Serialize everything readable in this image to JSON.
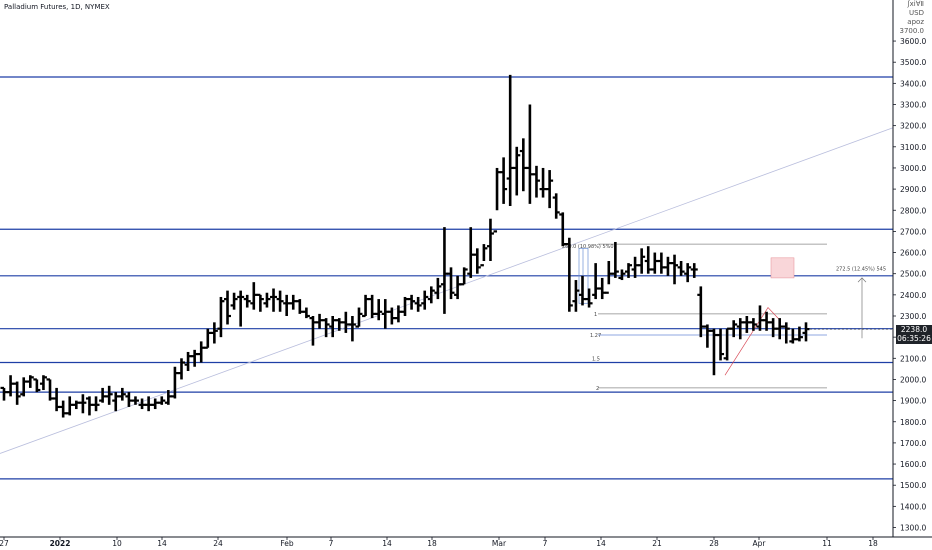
{
  "header": {
    "title": "Palladium Futures, 1D, NYMEX",
    "corner_lines": [
      "ʃxi∀Ⅱ",
      "USD",
      "apoz"
    ],
    "corner_num": "3700.0"
  },
  "price_tag": {
    "price": "2238.0",
    "countdown": "06:35:26"
  },
  "annotations": {
    "measure_upper": "260.0 (10.98%) 5%0",
    "measure_right": "272.5 (12.45%) 545",
    "fib_1": "1",
    "fib_127": "1.27",
    "fib_2": "2",
    "fib_15": "1.5"
  },
  "colors": {
    "levels": "#1e3fa6",
    "bars": "#000000",
    "trend": "#b9bedd",
    "red_zone": "#f9d6d9"
  },
  "chart_data": {
    "type": "ohlc",
    "title": "Palladium Futures, 1D, NYMEX",
    "xlabel": "",
    "ylabel": "",
    "ylim": [
      1300,
      3750
    ],
    "y_ticks": [
      1300,
      1400,
      1500,
      1600,
      1700,
      1800,
      1900,
      2000,
      2100,
      2200,
      2300,
      2400,
      2500,
      2600,
      2700,
      2800,
      2900,
      3000,
      3100,
      3200,
      3300,
      3400,
      3500,
      3600
    ],
    "x_tick_labels": [
      "27",
      "2022",
      "10",
      "14",
      "24",
      "Feb",
      "7",
      "14",
      "18",
      "Mar",
      "7",
      "14",
      "21",
      "28",
      "Apr",
      "11",
      "18"
    ],
    "horizontal_levels": [
      3430,
      2710,
      2490,
      2240,
      2080,
      1940,
      1530
    ],
    "trendline": {
      "from": [
        "27",
        1650
      ],
      "to": [
        "18",
        3190
      ]
    },
    "last_price": 2238.0,
    "bars": [
      [
        1960,
        1960,
        1900,
        1940
      ],
      [
        1940,
        2020,
        1920,
        1980
      ],
      [
        1980,
        1990,
        1880,
        1920
      ],
      [
        1930,
        2010,
        1920,
        1990
      ],
      [
        1990,
        2020,
        1960,
        2010
      ],
      [
        2000,
        2000,
        1940,
        1950
      ],
      [
        1980,
        2020,
        1950,
        2010
      ],
      [
        2000,
        2000,
        1900,
        1910
      ],
      [
        1910,
        1960,
        1850,
        1870
      ],
      [
        1870,
        1900,
        1820,
        1840
      ],
      [
        1840,
        1920,
        1830,
        1880
      ],
      [
        1880,
        1900,
        1860,
        1890
      ],
      [
        1890,
        1930,
        1840,
        1890
      ],
      [
        1910,
        1920,
        1830,
        1880
      ],
      [
        1880,
        1920,
        1850,
        1880
      ],
      [
        1900,
        1960,
        1890,
        1920
      ],
      [
        1920,
        1970,
        1880,
        1930
      ],
      [
        1900,
        1940,
        1850,
        1920
      ],
      [
        1920,
        1960,
        1900,
        1930
      ],
      [
        1920,
        1940,
        1870,
        1900
      ],
      [
        1900,
        1920,
        1880,
        1900
      ],
      [
        1880,
        1910,
        1860,
        1880
      ],
      [
        1880,
        1920,
        1850,
        1880
      ],
      [
        1880,
        1910,
        1860,
        1890
      ],
      [
        1890,
        1920,
        1880,
        1900
      ],
      [
        1890,
        1950,
        1880,
        1920
      ],
      [
        1920,
        2060,
        1910,
        2030
      ],
      [
        2030,
        2100,
        2000,
        2080
      ],
      [
        2070,
        2130,
        2040,
        2110
      ],
      [
        2110,
        2140,
        2060,
        2120
      ],
      [
        2120,
        2180,
        2080,
        2150
      ],
      [
        2150,
        2240,
        2150,
        2220
      ],
      [
        2220,
        2270,
        2170,
        2230
      ],
      [
        2240,
        2390,
        2200,
        2370
      ],
      [
        2380,
        2420,
        2260,
        2300
      ],
      [
        2350,
        2410,
        2330,
        2380
      ],
      [
        2390,
        2420,
        2250,
        2390
      ],
      [
        2380,
        2400,
        2340,
        2370
      ],
      [
        2360,
        2460,
        2330,
        2400
      ],
      [
        2400,
        2400,
        2320,
        2380
      ],
      [
        2360,
        2410,
        2340,
        2380
      ],
      [
        2390,
        2430,
        2320,
        2390
      ],
      [
        2380,
        2420,
        2320,
        2370
      ],
      [
        2360,
        2400,
        2300,
        2360
      ],
      [
        2360,
        2400,
        2330,
        2370
      ],
      [
        2370,
        2380,
        2310,
        2320
      ],
      [
        2320,
        2340,
        2290,
        2300
      ],
      [
        2290,
        2300,
        2160,
        2270
      ],
      [
        2270,
        2310,
        2240,
        2280
      ],
      [
        2280,
        2290,
        2200,
        2260
      ],
      [
        2250,
        2300,
        2200,
        2280
      ],
      [
        2280,
        2290,
        2230,
        2270
      ],
      [
        2270,
        2320,
        2220,
        2260
      ],
      [
        2260,
        2300,
        2180,
        2260
      ],
      [
        2250,
        2340,
        2250,
        2310
      ],
      [
        2300,
        2400,
        2300,
        2380
      ],
      [
        2380,
        2400,
        2290,
        2310
      ],
      [
        2310,
        2380,
        2280,
        2320
      ],
      [
        2310,
        2380,
        2240,
        2320
      ],
      [
        2320,
        2340,
        2260,
        2290
      ],
      [
        2290,
        2350,
        2270,
        2320
      ],
      [
        2320,
        2390,
        2300,
        2380
      ],
      [
        2380,
        2400,
        2330,
        2370
      ],
      [
        2360,
        2390,
        2320,
        2350
      ],
      [
        2360,
        2420,
        2330,
        2390
      ],
      [
        2380,
        2440,
        2360,
        2420
      ],
      [
        2410,
        2480,
        2380,
        2440
      ],
      [
        2450,
        2720,
        2310,
        2500
      ],
      [
        2500,
        2530,
        2380,
        2410
      ],
      [
        2400,
        2490,
        2380,
        2450
      ],
      [
        2450,
        2530,
        2450,
        2520
      ],
      [
        2500,
        2720,
        2480,
        2590
      ],
      [
        2590,
        2620,
        2500,
        2530
      ],
      [
        2540,
        2640,
        2560,
        2620
      ],
      [
        2630,
        2760,
        2560,
        2690
      ],
      [
        2700,
        3000,
        2800,
        2980
      ],
      [
        2980,
        3050,
        2830,
        2900
      ],
      [
        2950,
        3440,
        2820,
        3000
      ],
      [
        3000,
        3100,
        2870,
        3060
      ],
      [
        3080,
        3140,
        2890,
        3000
      ],
      [
        3000,
        3300,
        2830,
        2970
      ],
      [
        2970,
        3010,
        2860,
        2940
      ],
      [
        2900,
        3000,
        2860,
        2900
      ],
      [
        2900,
        2990,
        2810,
        2940
      ],
      [
        2860,
        2880,
        2760,
        2790
      ],
      [
        2780,
        2790,
        2630,
        2640
      ],
      [
        2640,
        2670,
        2320,
        2350
      ],
      [
        2370,
        2470,
        2320,
        2420
      ],
      [
        2400,
        2490,
        2350,
        2380
      ],
      [
        2380,
        2430,
        2340,
        2360
      ],
      [
        2400,
        2550,
        2380,
        2430
      ],
      [
        2430,
        2480,
        2380,
        2410
      ],
      [
        2410,
        2560,
        2450,
        2500
      ],
      [
        2500,
        2650,
        2480,
        2510
      ],
      [
        2480,
        2520,
        2470,
        2500
      ],
      [
        2510,
        2550,
        2480,
        2540
      ],
      [
        2520,
        2580,
        2480,
        2540
      ],
      [
        2540,
        2620,
        2500,
        2580
      ],
      [
        2560,
        2630,
        2500,
        2520
      ],
      [
        2520,
        2600,
        2500,
        2560
      ],
      [
        2560,
        2600,
        2500,
        2530
      ],
      [
        2530,
        2580,
        2490,
        2550
      ],
      [
        2550,
        2590,
        2450,
        2540
      ],
      [
        2530,
        2560,
        2490,
        2510
      ],
      [
        2500,
        2550,
        2460,
        2530
      ],
      [
        2520,
        2550,
        2480,
        2520
      ],
      [
        2400,
        2440,
        2200,
        2250
      ],
      [
        2250,
        2260,
        2150,
        2230
      ],
      [
        2230,
        2240,
        2020,
        2210
      ],
      [
        2210,
        2240,
        2090,
        2120
      ],
      [
        2100,
        2240,
        2090,
        2240
      ],
      [
        2240,
        2280,
        2200,
        2260
      ],
      [
        2250,
        2290,
        2190,
        2270
      ],
      [
        2270,
        2300,
        2220,
        2270
      ],
      [
        2270,
        2290,
        2230,
        2260
      ],
      [
        2250,
        2350,
        2230,
        2280
      ],
      [
        2280,
        2320,
        2230,
        2270
      ],
      [
        2270,
        2290,
        2200,
        2240
      ],
      [
        2240,
        2290,
        2190,
        2250
      ],
      [
        2250,
        2270,
        2170,
        2240
      ],
      [
        2180,
        2240,
        2170,
        2190
      ],
      [
        2190,
        2250,
        2180,
        2200
      ],
      [
        2220,
        2270,
        2180,
        2238
      ]
    ]
  }
}
